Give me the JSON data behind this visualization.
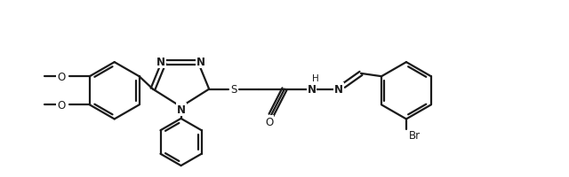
{
  "background_color": "#ffffff",
  "line_color": "#1a1a1a",
  "line_width": 1.6,
  "figsize": [
    6.4,
    2.01
  ],
  "dpi": 100,
  "font_size": 8.5,
  "xlim": [
    0,
    10.5
  ],
  "ylim": [
    -0.2,
    3.4
  ]
}
